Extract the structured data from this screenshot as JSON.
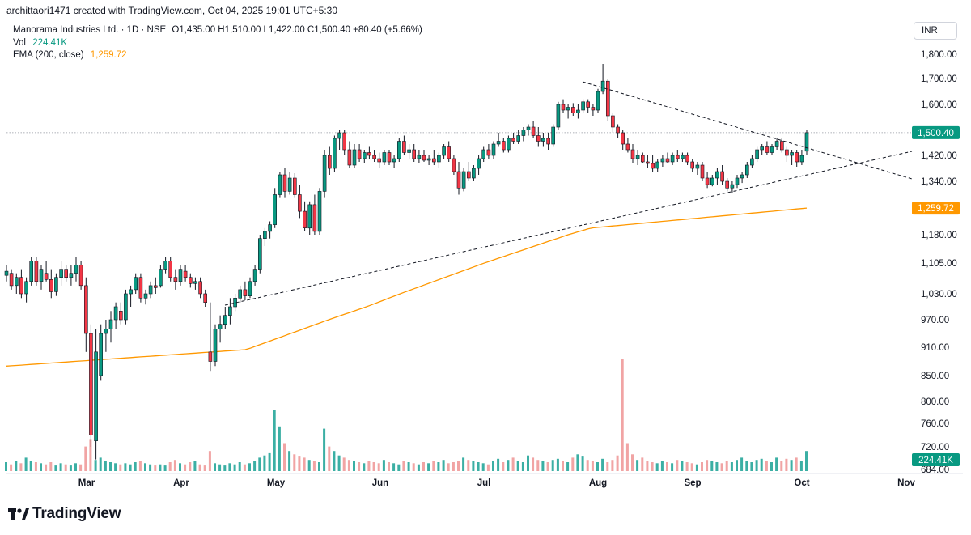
{
  "caption": "archittaori1471 created with TradingView.com, Oct 04, 2025 19:01 UTC+5:30",
  "legend": {
    "symbol": "Manorama Industries Ltd. · 1D · NSE",
    "ohlc_text": "O1,435.00  H1,510.00  L1,422.00  C1,500.40  +80.40 (+5.66%)",
    "vol_label": "Vol",
    "vol_value": "224.41K",
    "ema_label": "EMA (200, close)",
    "ema_value": "1,259.72"
  },
  "currency": "INR",
  "brand": "TradingView",
  "colors": {
    "up": "#089981",
    "down": "#f23645",
    "ema": "#ff9800",
    "up_vol": "#26a69a",
    "down_vol": "#ef9a9a"
  },
  "chart_data": {
    "type": "candlestick",
    "y_axis_ticks": [
      "1,800.00",
      "1,700.00",
      "1,600.00",
      "1,420.00",
      "1,340.00",
      "1,180.00",
      "1,105.00",
      "1,030.00",
      "970.00",
      "910.00",
      "850.00",
      "800.00",
      "760.00",
      "720.00",
      "684.00"
    ],
    "x_axis_ticks": [
      "Mar",
      "Apr",
      "May",
      "Jun",
      "Jul",
      "Aug",
      "Sep",
      "Oct",
      "Nov"
    ],
    "last_price": "1,500.40",
    "ema_last": "1,259.72",
    "volume_last": "224.41K",
    "ohlc": [
      {
        "o": 1075,
        "h": 1100,
        "l": 1060,
        "c": 1085
      },
      {
        "o": 1080,
        "h": 1090,
        "l": 1040,
        "c": 1050
      },
      {
        "o": 1050,
        "h": 1080,
        "l": 1030,
        "c": 1070
      },
      {
        "o": 1070,
        "h": 1090,
        "l": 1020,
        "c": 1030
      },
      {
        "o": 1030,
        "h": 1070,
        "l": 1010,
        "c": 1060
      },
      {
        "o": 1060,
        "h": 1120,
        "l": 1050,
        "c": 1110
      },
      {
        "o": 1110,
        "h": 1120,
        "l": 1050,
        "c": 1060
      },
      {
        "o": 1060,
        "h": 1100,
        "l": 1040,
        "c": 1090
      },
      {
        "o": 1080,
        "h": 1110,
        "l": 1060,
        "c": 1065
      },
      {
        "o": 1065,
        "h": 1090,
        "l": 1020,
        "c": 1035
      },
      {
        "o": 1035,
        "h": 1080,
        "l": 1025,
        "c": 1070
      },
      {
        "o": 1070,
        "h": 1110,
        "l": 1050,
        "c": 1090
      },
      {
        "o": 1090,
        "h": 1100,
        "l": 1060,
        "c": 1070
      },
      {
        "o": 1070,
        "h": 1100,
        "l": 1050,
        "c": 1080
      },
      {
        "o": 1080,
        "h": 1120,
        "l": 1060,
        "c": 1100
      },
      {
        "o": 1100,
        "h": 1110,
        "l": 1040,
        "c": 1050
      },
      {
        "o": 1050,
        "h": 1070,
        "l": 900,
        "c": 940
      },
      {
        "o": 940,
        "h": 960,
        "l": 720,
        "c": 740
      },
      {
        "o": 730,
        "h": 950,
        "l": 700,
        "c": 900
      },
      {
        "o": 850,
        "h": 960,
        "l": 840,
        "c": 940
      },
      {
        "o": 940,
        "h": 970,
        "l": 900,
        "c": 950
      },
      {
        "o": 950,
        "h": 990,
        "l": 920,
        "c": 970
      },
      {
        "o": 970,
        "h": 1010,
        "l": 950,
        "c": 1000
      },
      {
        "o": 990,
        "h": 1010,
        "l": 960,
        "c": 970
      },
      {
        "o": 970,
        "h": 1040,
        "l": 960,
        "c": 1030
      },
      {
        "o": 1030,
        "h": 1050,
        "l": 1000,
        "c": 1040
      },
      {
        "o": 1040,
        "h": 1080,
        "l": 1030,
        "c": 1070
      },
      {
        "o": 1070,
        "h": 1080,
        "l": 1010,
        "c": 1020
      },
      {
        "o": 1020,
        "h": 1040,
        "l": 1005,
        "c": 1030
      },
      {
        "o": 1030,
        "h": 1060,
        "l": 1020,
        "c": 1050
      },
      {
        "o": 1050,
        "h": 1070,
        "l": 1030,
        "c": 1045
      },
      {
        "o": 1050,
        "h": 1100,
        "l": 1045,
        "c": 1090
      },
      {
        "o": 1090,
        "h": 1120,
        "l": 1080,
        "c": 1110
      },
      {
        "o": 1110,
        "h": 1120,
        "l": 1060,
        "c": 1070
      },
      {
        "o": 1070,
        "h": 1090,
        "l": 1040,
        "c": 1060
      },
      {
        "o": 1060,
        "h": 1100,
        "l": 1050,
        "c": 1090
      },
      {
        "o": 1085,
        "h": 1100,
        "l": 1060,
        "c": 1070
      },
      {
        "o": 1070,
        "h": 1080,
        "l": 1045,
        "c": 1055
      },
      {
        "o": 1055,
        "h": 1070,
        "l": 1040,
        "c": 1060
      },
      {
        "o": 1060,
        "h": 1070,
        "l": 1020,
        "c": 1030
      },
      {
        "o": 1030,
        "h": 1040,
        "l": 1000,
        "c": 1010
      },
      {
        "o": 900,
        "h": 1010,
        "l": 860,
        "c": 880
      },
      {
        "o": 880,
        "h": 960,
        "l": 870,
        "c": 950
      },
      {
        "o": 950,
        "h": 980,
        "l": 920,
        "c": 960
      },
      {
        "o": 960,
        "h": 1000,
        "l": 950,
        "c": 980
      },
      {
        "o": 980,
        "h": 1020,
        "l": 960,
        "c": 1000
      },
      {
        "o": 1000,
        "h": 1030,
        "l": 990,
        "c": 1020
      },
      {
        "o": 1020,
        "h": 1050,
        "l": 1010,
        "c": 1040
      },
      {
        "o": 1040,
        "h": 1060,
        "l": 1015,
        "c": 1025
      },
      {
        "o": 1025,
        "h": 1070,
        "l": 1020,
        "c": 1060
      },
      {
        "o": 1060,
        "h": 1100,
        "l": 1050,
        "c": 1090
      },
      {
        "o": 1090,
        "h": 1180,
        "l": 1080,
        "c": 1170
      },
      {
        "o": 1170,
        "h": 1200,
        "l": 1150,
        "c": 1190
      },
      {
        "o": 1190,
        "h": 1220,
        "l": 1170,
        "c": 1210
      },
      {
        "o": 1210,
        "h": 1320,
        "l": 1200,
        "c": 1300
      },
      {
        "o": 1300,
        "h": 1370,
        "l": 1290,
        "c": 1360
      },
      {
        "o": 1360,
        "h": 1380,
        "l": 1290,
        "c": 1310
      },
      {
        "o": 1310,
        "h": 1370,
        "l": 1300,
        "c": 1350
      },
      {
        "o": 1350,
        "h": 1365,
        "l": 1290,
        "c": 1300
      },
      {
        "o": 1300,
        "h": 1330,
        "l": 1230,
        "c": 1250
      },
      {
        "o": 1250,
        "h": 1280,
        "l": 1190,
        "c": 1200
      },
      {
        "o": 1200,
        "h": 1280,
        "l": 1180,
        "c": 1270
      },
      {
        "o": 1270,
        "h": 1300,
        "l": 1180,
        "c": 1190
      },
      {
        "o": 1190,
        "h": 1320,
        "l": 1180,
        "c": 1310
      },
      {
        "o": 1310,
        "h": 1440,
        "l": 1290,
        "c": 1420
      },
      {
        "o": 1420,
        "h": 1450,
        "l": 1360,
        "c": 1380
      },
      {
        "o": 1380,
        "h": 1490,
        "l": 1370,
        "c": 1480
      },
      {
        "o": 1480,
        "h": 1510,
        "l": 1440,
        "c": 1500
      },
      {
        "o": 1500,
        "h": 1510,
        "l": 1420,
        "c": 1440
      },
      {
        "o": 1440,
        "h": 1470,
        "l": 1380,
        "c": 1390
      },
      {
        "o": 1390,
        "h": 1460,
        "l": 1380,
        "c": 1440
      },
      {
        "o": 1440,
        "h": 1460,
        "l": 1400,
        "c": 1410
      },
      {
        "o": 1410,
        "h": 1440,
        "l": 1395,
        "c": 1430
      },
      {
        "o": 1430,
        "h": 1450,
        "l": 1410,
        "c": 1420
      },
      {
        "o": 1420,
        "h": 1440,
        "l": 1400,
        "c": 1410
      },
      {
        "o": 1410,
        "h": 1430,
        "l": 1380,
        "c": 1400
      },
      {
        "o": 1400,
        "h": 1440,
        "l": 1390,
        "c": 1430
      },
      {
        "o": 1430,
        "h": 1440,
        "l": 1390,
        "c": 1400
      },
      {
        "o": 1400,
        "h": 1420,
        "l": 1380,
        "c": 1410
      },
      {
        "o": 1410,
        "h": 1480,
        "l": 1400,
        "c": 1470
      },
      {
        "o": 1470,
        "h": 1490,
        "l": 1420,
        "c": 1430
      },
      {
        "o": 1430,
        "h": 1460,
        "l": 1410,
        "c": 1440
      },
      {
        "o": 1440,
        "h": 1460,
        "l": 1400,
        "c": 1410
      },
      {
        "o": 1410,
        "h": 1440,
        "l": 1395,
        "c": 1420
      },
      {
        "o": 1420,
        "h": 1440,
        "l": 1400,
        "c": 1405
      },
      {
        "o": 1405,
        "h": 1420,
        "l": 1390,
        "c": 1410
      },
      {
        "o": 1410,
        "h": 1440,
        "l": 1390,
        "c": 1400
      },
      {
        "o": 1400,
        "h": 1430,
        "l": 1380,
        "c": 1420
      },
      {
        "o": 1420,
        "h": 1460,
        "l": 1410,
        "c": 1450
      },
      {
        "o": 1450,
        "h": 1470,
        "l": 1400,
        "c": 1410
      },
      {
        "o": 1410,
        "h": 1420,
        "l": 1360,
        "c": 1370
      },
      {
        "o": 1370,
        "h": 1400,
        "l": 1300,
        "c": 1320
      },
      {
        "o": 1320,
        "h": 1380,
        "l": 1310,
        "c": 1370
      },
      {
        "o": 1370,
        "h": 1400,
        "l": 1340,
        "c": 1350
      },
      {
        "o": 1350,
        "h": 1390,
        "l": 1340,
        "c": 1380
      },
      {
        "o": 1380,
        "h": 1420,
        "l": 1360,
        "c": 1410
      },
      {
        "o": 1410,
        "h": 1450,
        "l": 1400,
        "c": 1440
      },
      {
        "o": 1440,
        "h": 1460,
        "l": 1410,
        "c": 1420
      },
      {
        "o": 1420,
        "h": 1470,
        "l": 1410,
        "c": 1460
      },
      {
        "o": 1460,
        "h": 1500,
        "l": 1450,
        "c": 1470
      },
      {
        "o": 1470,
        "h": 1480,
        "l": 1430,
        "c": 1440
      },
      {
        "o": 1440,
        "h": 1490,
        "l": 1430,
        "c": 1480
      },
      {
        "o": 1480,
        "h": 1500,
        "l": 1460,
        "c": 1470
      },
      {
        "o": 1470,
        "h": 1510,
        "l": 1460,
        "c": 1490
      },
      {
        "o": 1490,
        "h": 1520,
        "l": 1470,
        "c": 1510
      },
      {
        "o": 1510,
        "h": 1530,
        "l": 1490,
        "c": 1520
      },
      {
        "o": 1520,
        "h": 1540,
        "l": 1480,
        "c": 1490
      },
      {
        "o": 1490,
        "h": 1520,
        "l": 1450,
        "c": 1470
      },
      {
        "o": 1470,
        "h": 1500,
        "l": 1450,
        "c": 1480
      },
      {
        "o": 1480,
        "h": 1500,
        "l": 1440,
        "c": 1460
      },
      {
        "o": 1460,
        "h": 1530,
        "l": 1450,
        "c": 1520
      },
      {
        "o": 1520,
        "h": 1610,
        "l": 1510,
        "c": 1600
      },
      {
        "o": 1600,
        "h": 1620,
        "l": 1570,
        "c": 1580
      },
      {
        "o": 1580,
        "h": 1600,
        "l": 1550,
        "c": 1590
      },
      {
        "o": 1590,
        "h": 1605,
        "l": 1560,
        "c": 1570
      },
      {
        "o": 1570,
        "h": 1600,
        "l": 1550,
        "c": 1580
      },
      {
        "o": 1580,
        "h": 1620,
        "l": 1570,
        "c": 1610
      },
      {
        "o": 1610,
        "h": 1620,
        "l": 1570,
        "c": 1590
      },
      {
        "o": 1590,
        "h": 1600,
        "l": 1560,
        "c": 1580
      },
      {
        "o": 1580,
        "h": 1660,
        "l": 1570,
        "c": 1650
      },
      {
        "o": 1650,
        "h": 1760,
        "l": 1640,
        "c": 1690
      },
      {
        "o": 1690,
        "h": 1700,
        "l": 1540,
        "c": 1560
      },
      {
        "o": 1560,
        "h": 1570,
        "l": 1500,
        "c": 1520
      },
      {
        "o": 1520,
        "h": 1530,
        "l": 1480,
        "c": 1500
      },
      {
        "o": 1500,
        "h": 1510,
        "l": 1440,
        "c": 1460
      },
      {
        "o": 1460,
        "h": 1480,
        "l": 1430,
        "c": 1440
      },
      {
        "o": 1440,
        "h": 1460,
        "l": 1395,
        "c": 1410
      },
      {
        "o": 1410,
        "h": 1440,
        "l": 1390,
        "c": 1420
      },
      {
        "o": 1420,
        "h": 1430,
        "l": 1395,
        "c": 1400
      },
      {
        "o": 1400,
        "h": 1420,
        "l": 1380,
        "c": 1395
      },
      {
        "o": 1395,
        "h": 1420,
        "l": 1370,
        "c": 1380
      },
      {
        "o": 1380,
        "h": 1410,
        "l": 1370,
        "c": 1400
      },
      {
        "o": 1400,
        "h": 1420,
        "l": 1385,
        "c": 1410
      },
      {
        "o": 1410,
        "h": 1430,
        "l": 1395,
        "c": 1400
      },
      {
        "o": 1400,
        "h": 1430,
        "l": 1390,
        "c": 1420
      },
      {
        "o": 1420,
        "h": 1440,
        "l": 1400,
        "c": 1410
      },
      {
        "o": 1410,
        "h": 1430,
        "l": 1400,
        "c": 1420
      },
      {
        "o": 1420,
        "h": 1430,
        "l": 1390,
        "c": 1400
      },
      {
        "o": 1400,
        "h": 1410,
        "l": 1370,
        "c": 1380
      },
      {
        "o": 1380,
        "h": 1400,
        "l": 1360,
        "c": 1390
      },
      {
        "o": 1390,
        "h": 1400,
        "l": 1340,
        "c": 1350
      },
      {
        "o": 1350,
        "h": 1370,
        "l": 1320,
        "c": 1330
      },
      {
        "o": 1330,
        "h": 1360,
        "l": 1325,
        "c": 1350
      },
      {
        "o": 1350,
        "h": 1380,
        "l": 1330,
        "c": 1370
      },
      {
        "o": 1370,
        "h": 1390,
        "l": 1330,
        "c": 1340
      },
      {
        "o": 1340,
        "h": 1350,
        "l": 1310,
        "c": 1320
      },
      {
        "o": 1320,
        "h": 1340,
        "l": 1305,
        "c": 1330
      },
      {
        "o": 1330,
        "h": 1360,
        "l": 1320,
        "c": 1350
      },
      {
        "o": 1350,
        "h": 1370,
        "l": 1335,
        "c": 1360
      },
      {
        "o": 1360,
        "h": 1400,
        "l": 1350,
        "c": 1390
      },
      {
        "o": 1390,
        "h": 1420,
        "l": 1380,
        "c": 1410
      },
      {
        "o": 1410,
        "h": 1450,
        "l": 1400,
        "c": 1440
      },
      {
        "o": 1440,
        "h": 1460,
        "l": 1420,
        "c": 1450
      },
      {
        "o": 1450,
        "h": 1470,
        "l": 1420,
        "c": 1430
      },
      {
        "o": 1430,
        "h": 1460,
        "l": 1420,
        "c": 1450
      },
      {
        "o": 1450,
        "h": 1480,
        "l": 1440,
        "c": 1470
      },
      {
        "o": 1470,
        "h": 1480,
        "l": 1430,
        "c": 1440
      },
      {
        "o": 1440,
        "h": 1450,
        "l": 1400,
        "c": 1420
      },
      {
        "o": 1420,
        "h": 1440,
        "l": 1390,
        "c": 1430
      },
      {
        "o": 1430,
        "h": 1440,
        "l": 1385,
        "c": 1400
      },
      {
        "o": 1400,
        "h": 1440,
        "l": 1390,
        "c": 1420
      },
      {
        "o": 1435,
        "h": 1510,
        "l": 1422,
        "c": 1500.4
      }
    ],
    "volume": [
      8,
      6,
      9,
      7,
      12,
      9,
      8,
      7,
      6,
      8,
      5,
      7,
      6,
      5,
      7,
      6,
      22,
      28,
      10,
      12,
      9,
      8,
      7,
      6,
      7,
      6,
      8,
      9,
      7,
      6,
      5,
      6,
      5,
      8,
      10,
      7,
      6,
      8,
      9,
      6,
      5,
      18,
      7,
      6,
      5,
      7,
      6,
      8,
      6,
      7,
      9,
      12,
      14,
      16,
      55,
      40,
      25,
      18,
      15,
      13,
      12,
      10,
      9,
      8,
      38,
      22,
      18,
      14,
      12,
      10,
      9,
      8,
      7,
      9,
      8,
      7,
      10,
      8,
      7,
      6,
      9,
      8,
      7,
      6,
      8,
      7,
      9,
      8,
      10,
      7,
      8,
      9,
      12,
      10,
      9,
      8,
      7,
      6,
      9,
      11,
      8,
      10,
      12,
      9,
      8,
      14,
      12,
      10,
      9,
      8,
      10,
      11,
      9,
      8,
      12,
      15,
      13,
      10,
      9,
      8,
      11,
      8,
      10,
      14,
      100,
      25,
      15,
      10,
      12,
      9,
      8,
      7,
      9,
      8,
      7,
      10,
      9,
      8,
      7,
      6,
      8,
      10,
      9,
      8,
      7,
      9,
      8,
      10,
      12,
      9,
      8,
      10,
      11,
      9,
      8,
      12,
      9,
      11,
      10,
      12,
      9,
      18
    ]
  }
}
